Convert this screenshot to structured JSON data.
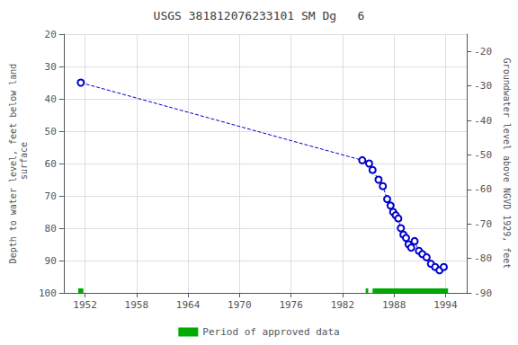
{
  "chart_data": {
    "type": "line",
    "title": "USGS 381812076233101 SM Dg   6",
    "ylabel": "Depth to water level, feet below land\n surface",
    "y2label": "Groundwater level above NGVD 1929, feet",
    "x": [
      1951.5,
      1984.3,
      1985.1,
      1985.5,
      1986.2,
      1986.7,
      1987.2,
      1987.6,
      1987.9,
      1988.2,
      1988.5,
      1988.8,
      1989.1,
      1989.4,
      1989.7,
      1990.0,
      1990.4,
      1990.9,
      1991.3,
      1991.8,
      1992.3,
      1992.8,
      1993.3,
      1993.8
    ],
    "series": [
      {
        "type": "line",
        "color": "#0000cc",
        "line_style": "dashed",
        "marker": "open_circle",
        "values": [
          35,
          59,
          60,
          62,
          65,
          67,
          71,
          73,
          75,
          76,
          77,
          80,
          82,
          83,
          85,
          86,
          84,
          87,
          88,
          89,
          91,
          92,
          93,
          92
        ]
      },
      {
        "type": "bar",
        "orientation": "horizontal",
        "name": "Period of approved data",
        "color": "#00aa00",
        "periods": [
          [
            1951.2,
            1951.8
          ],
          [
            1984.7,
            1985.0
          ],
          [
            1985.5,
            1994.3
          ]
        ]
      }
    ],
    "xlim": [
      1949.5,
      1996.5
    ],
    "xticks": [
      1952,
      1958,
      1964,
      1970,
      1976,
      1982,
      1988,
      1994
    ],
    "ylim": [
      100,
      20
    ],
    "yticks": [
      20,
      30,
      40,
      50,
      60,
      70,
      80,
      90,
      100
    ],
    "y2lim": [
      -90,
      -15
    ],
    "y2ticks": [
      -20,
      -30,
      -40,
      -50,
      -60,
      -70,
      -80,
      -90
    ],
    "grid": true,
    "legend": "bottom"
  }
}
